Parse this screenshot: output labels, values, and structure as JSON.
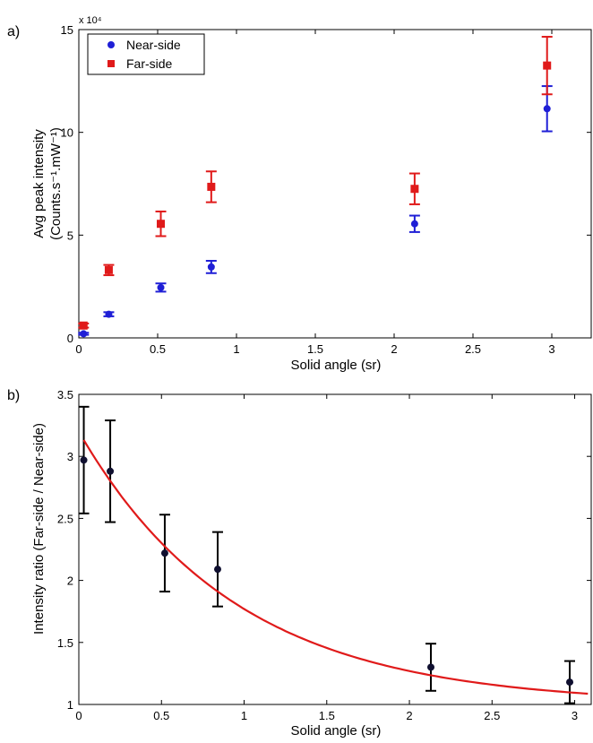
{
  "chart_data": [
    {
      "panel_label": "a)",
      "type": "scatter",
      "xlabel": "Solid angle (sr)",
      "ylabel_line1": "Avg peak intensity",
      "ylabel_line2": "(Counts.s⁻¹.mW⁻¹)",
      "y_multiplier": "x 10⁴",
      "xlim": [
        0,
        3.25
      ],
      "ylim": [
        0,
        150000
      ],
      "x_ticks": [
        0,
        0.5,
        1,
        1.5,
        2,
        2.5,
        3
      ],
      "x_tick_labels": [
        "0",
        "0.5",
        "1",
        "1.5",
        "2",
        "2.5",
        "3"
      ],
      "y_ticks": [
        0,
        50000,
        100000,
        150000
      ],
      "y_tick_labels": [
        "0",
        "5",
        "10",
        "15"
      ],
      "grid": false,
      "legend_position": "top-left",
      "series": [
        {
          "name": "Near-side",
          "color": "#1f1fd6",
          "marker": "circle",
          "x": [
            0.03,
            0.19,
            0.52,
            0.84,
            2.13,
            2.97
          ],
          "y": [
            2000,
            11500,
            24500,
            34500,
            55500,
            111500
          ],
          "err": [
            500,
            1000,
            2000,
            3000,
            4000,
            11000
          ]
        },
        {
          "name": "Far-side",
          "color": "#e01a1a",
          "marker": "square",
          "x": [
            0.03,
            0.19,
            0.52,
            0.84,
            2.13,
            2.97
          ],
          "y": [
            6000,
            33000,
            55500,
            73500,
            72500,
            132500
          ],
          "err": [
            1000,
            2500,
            6000,
            7500,
            7500,
            14000
          ]
        }
      ]
    },
    {
      "panel_label": "b)",
      "type": "scatter",
      "xlabel": "Solid angle (sr)",
      "ylabel": "Intensity ratio (Far-side / Near-side)",
      "xlim": [
        0,
        3.1
      ],
      "ylim": [
        1,
        3.5
      ],
      "x_ticks": [
        0,
        0.5,
        1,
        1.5,
        2,
        2.5,
        3
      ],
      "x_tick_labels": [
        "0",
        "0.5",
        "1",
        "1.5",
        "2",
        "2.5",
        "3"
      ],
      "y_ticks": [
        1,
        1.5,
        2,
        2.5,
        3,
        3.5
      ],
      "y_tick_labels": [
        "1",
        "1.5",
        "2",
        "2.5",
        "3",
        "3.5"
      ],
      "grid": false,
      "series": [
        {
          "marker": "circle",
          "color": "#101030",
          "err_color": "#000000",
          "x": [
            0.03,
            0.19,
            0.52,
            0.84,
            2.13,
            2.97
          ],
          "y": [
            2.97,
            2.88,
            2.22,
            2.09,
            1.3,
            1.18
          ],
          "err": [
            0.43,
            0.41,
            0.31,
            0.3,
            0.19,
            0.17
          ]
        },
        {
          "type": "fit-curve",
          "color": "#e01a1a",
          "form": "y = 1 + 2.2 * exp(-1.05 * x)",
          "x_range": [
            0.03,
            3.08
          ]
        }
      ]
    }
  ]
}
